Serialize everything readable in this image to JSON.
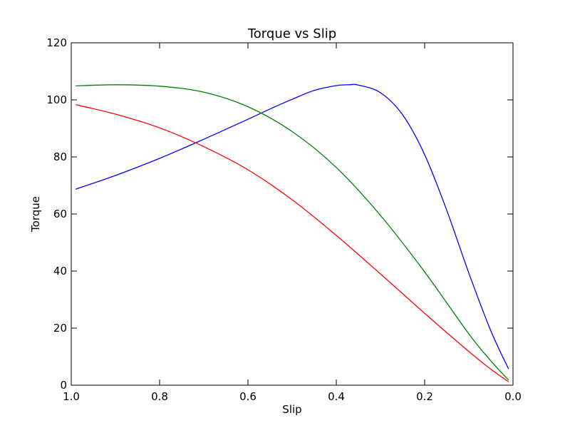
{
  "chart_data": {
    "type": "line",
    "title": "Torque vs Slip",
    "xlabel": "Slip",
    "ylabel": "Torque",
    "xlim": [
      1.0,
      0.0
    ],
    "ylim": [
      0,
      120
    ],
    "x_axis_reversed": true,
    "grid": false,
    "legend": "none",
    "x_ticks": [
      1.0,
      0.8,
      0.6,
      0.4,
      0.2,
      0.0
    ],
    "x_tick_labels": [
      "1.0",
      "0.8",
      "0.6",
      "0.4",
      "0.2",
      "0.0"
    ],
    "y_ticks": [
      0,
      20,
      40,
      60,
      80,
      100,
      120
    ],
    "y_tick_labels": [
      "0",
      "20",
      "40",
      "60",
      "80",
      "100",
      "120"
    ],
    "series": [
      {
        "color": "#0000ff",
        "x": [
          0.99,
          0.9,
          0.8,
          0.7,
          0.6,
          0.55,
          0.5,
          0.45,
          0.4,
          0.37,
          0.35,
          0.3,
          0.25,
          0.2,
          0.15,
          0.1,
          0.05,
          0.01
        ],
        "y": [
          68.7,
          73.5,
          79.5,
          86.2,
          93.2,
          96.8,
          100.2,
          103.3,
          105.0,
          105.3,
          105.2,
          102.5,
          94.8,
          80.8,
          61.3,
          39.3,
          19.0,
          5.7
        ]
      },
      {
        "color": "#008000",
        "x": [
          0.99,
          0.9,
          0.8,
          0.7,
          0.6,
          0.5,
          0.4,
          0.3,
          0.2,
          0.1,
          0.05,
          0.01
        ],
        "y": [
          104.9,
          105.3,
          104.8,
          102.7,
          97.6,
          88.9,
          76.3,
          59.5,
          39.7,
          18.0,
          8.5,
          1.8
        ]
      },
      {
        "color": "#ff0000",
        "x": [
          0.99,
          0.9,
          0.8,
          0.7,
          0.6,
          0.5,
          0.4,
          0.3,
          0.2,
          0.1,
          0.05,
          0.01
        ],
        "y": [
          98.3,
          95.0,
          90.2,
          83.6,
          75.5,
          65.0,
          52.5,
          39.0,
          25.2,
          11.8,
          5.6,
          1.2
        ]
      }
    ]
  }
}
